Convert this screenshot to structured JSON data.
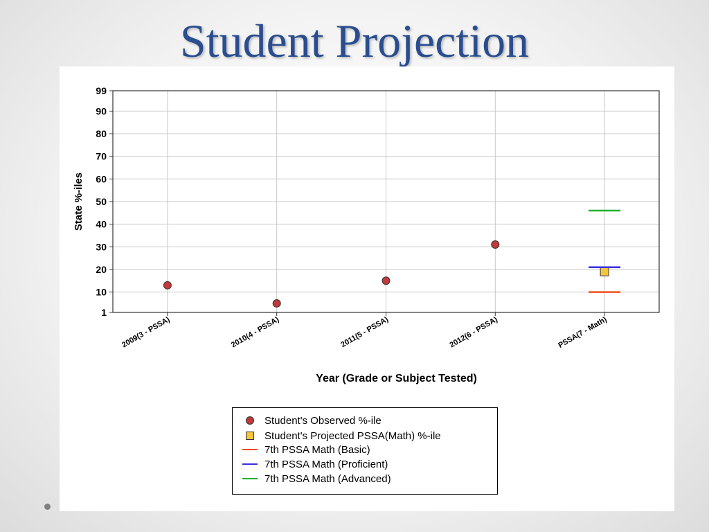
{
  "slide": {
    "title": "Student Projection"
  },
  "chart_data": {
    "type": "scatter",
    "ylabel": "State %-iles",
    "xlabel": "Year (Grade or Subject Tested)",
    "categories": [
      "2009(3 - PSSA)",
      "2010(4 - PSSA)",
      "2011(5 - PSSA)",
      "2012(6 - PSSA)",
      "PSSA(7 - Math)"
    ],
    "ylim": [
      1,
      99
    ],
    "yticks": [
      1,
      10,
      20,
      30,
      40,
      50,
      60,
      70,
      80,
      90,
      99
    ],
    "grid": true,
    "series": [
      {
        "name": "Student's Observed %-ile",
        "marker": "circle",
        "color": "#c0393b",
        "points": [
          {
            "x": "2009(3 - PSSA)",
            "y": 13
          },
          {
            "x": "2010(4 - PSSA)",
            "y": 5
          },
          {
            "x": "2011(5 - PSSA)",
            "y": 15
          },
          {
            "x": "2012(6 - PSSA)",
            "y": 31
          }
        ]
      },
      {
        "name": "Student's Projected PSSA(Math) %-ile",
        "marker": "square",
        "color": "#f5c542",
        "points": [
          {
            "x": "PSSA(7 - Math)",
            "y": 19
          }
        ]
      },
      {
        "name": "7th PSSA Math (Basic)",
        "marker": "hline",
        "color": "#f0501e",
        "points": [
          {
            "x": "PSSA(7 - Math)",
            "y": 10
          }
        ]
      },
      {
        "name": "7th PSSA Math (Proficient)",
        "marker": "hline",
        "color": "#3a2fe0",
        "points": [
          {
            "x": "PSSA(7 - Math)",
            "y": 21
          }
        ]
      },
      {
        "name": "7th PSSA Math (Advanced)",
        "marker": "hline",
        "color": "#22b02c",
        "points": [
          {
            "x": "PSSA(7 - Math)",
            "y": 46
          }
        ]
      }
    ],
    "legend_position": "bottom"
  }
}
